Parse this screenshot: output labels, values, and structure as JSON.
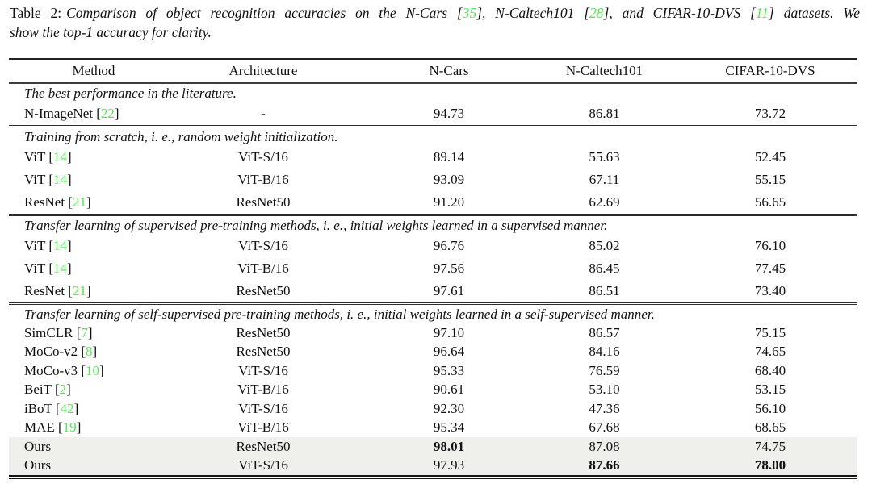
{
  "colors": {
    "citation_green": "#55e555",
    "highlight_row": "#efefec",
    "rule_dark": "#222222",
    "text": "#101010"
  },
  "caption": {
    "label": "Table 2:",
    "line1_segments": [
      {
        "t": "Comparison of object recognition accuracies on the N-Cars [",
        "s": "i"
      },
      {
        "t": "35",
        "s": "cite"
      },
      {
        "t": "], N-Caltech101 [",
        "s": "i"
      },
      {
        "t": "28",
        "s": "cite"
      },
      {
        "t": "], and CIFAR-10-DVS [",
        "s": "i"
      },
      {
        "t": "11",
        "s": "cite"
      },
      {
        "t": "] datasets.  We",
        "s": "i"
      }
    ],
    "line2": "show the top-1 accuracy for clarity."
  },
  "table": {
    "columns": [
      "Method",
      "Architecture",
      "N-Cars",
      "N-Caltech101",
      "CIFAR-10-DVS"
    ],
    "sections": [
      {
        "label": "The best performance in the literature.",
        "rows": [
          {
            "method": "N-ImageNet",
            "cite": "22",
            "arch": "-",
            "ncars": "94.73",
            "ncaltech": "86.81",
            "cifar": "73.72"
          }
        ]
      },
      {
        "label": "Training from scratch, i. e., random weight initialization.",
        "rows": [
          {
            "method": "ViT",
            "cite": "14",
            "arch": "ViT-S/16",
            "ncars": "89.14",
            "ncaltech": "55.63",
            "cifar": "52.45"
          },
          {
            "method": "ViT",
            "cite": "14",
            "arch": "ViT-B/16",
            "ncars": "93.09",
            "ncaltech": "67.11",
            "cifar": "55.15"
          },
          {
            "method": "ResNet",
            "cite": "21",
            "arch": "ResNet50",
            "ncars": "91.20",
            "ncaltech": "62.69",
            "cifar": "56.65"
          }
        ]
      },
      {
        "label": "Transfer learning of supervised pre-training methods, i. e., initial weights learned in a supervised manner.",
        "rows": [
          {
            "method": "ViT",
            "cite": "14",
            "arch": "ViT-S/16",
            "ncars": "96.76",
            "ncaltech": "85.02",
            "cifar": "76.10"
          },
          {
            "method": "ViT",
            "cite": "14",
            "arch": "ViT-B/16",
            "ncars": "97.56",
            "ncaltech": "86.45",
            "cifar": "77.45"
          },
          {
            "method": "ResNet",
            "cite": "21",
            "arch": "ResNet50",
            "ncars": "97.61",
            "ncaltech": "86.51",
            "cifar": "73.40"
          }
        ]
      },
      {
        "label": "Transfer learning of self-supervised pre-training methods, i. e., initial weights learned in a self-supervised manner.",
        "rows": [
          {
            "method": "SimCLR",
            "cite": "7",
            "arch": "ResNet50",
            "ncars": "97.10",
            "ncaltech": "86.57",
            "cifar": "75.15"
          },
          {
            "method": "MoCo-v2",
            "cite": "8",
            "arch": "ResNet50",
            "ncars": "96.64",
            "ncaltech": "84.16",
            "cifar": "74.65"
          },
          {
            "method": "MoCo-v3",
            "cite": "10",
            "arch": "ViT-S/16",
            "ncars": "95.33",
            "ncaltech": "76.59",
            "cifar": "68.40"
          },
          {
            "method": "BeiT",
            "cite": "2",
            "arch": "ViT-B/16",
            "ncars": "90.61",
            "ncaltech": "53.10",
            "cifar": "53.15"
          },
          {
            "method": "iBoT",
            "cite": "42",
            "arch": "ViT-S/16",
            "ncars": "92.30",
            "ncaltech": "47.36",
            "cifar": "56.10"
          },
          {
            "method": "MAE",
            "cite": "19",
            "arch": "ViT-B/16",
            "ncars": "95.34",
            "ncaltech": "67.68",
            "cifar": "68.65"
          },
          {
            "method": "Ours",
            "cite": null,
            "arch": "ResNet50",
            "ncars": "98.01",
            "ncaltech": "87.08",
            "cifar": "74.75",
            "highlight": true,
            "bold": [
              "ncars"
            ]
          },
          {
            "method": "Ours",
            "cite": null,
            "arch": "ViT-S/16",
            "ncars": "97.93",
            "ncaltech": "87.66",
            "cifar": "78.00",
            "highlight": true,
            "bold": [
              "ncaltech",
              "cifar"
            ]
          }
        ]
      }
    ]
  }
}
